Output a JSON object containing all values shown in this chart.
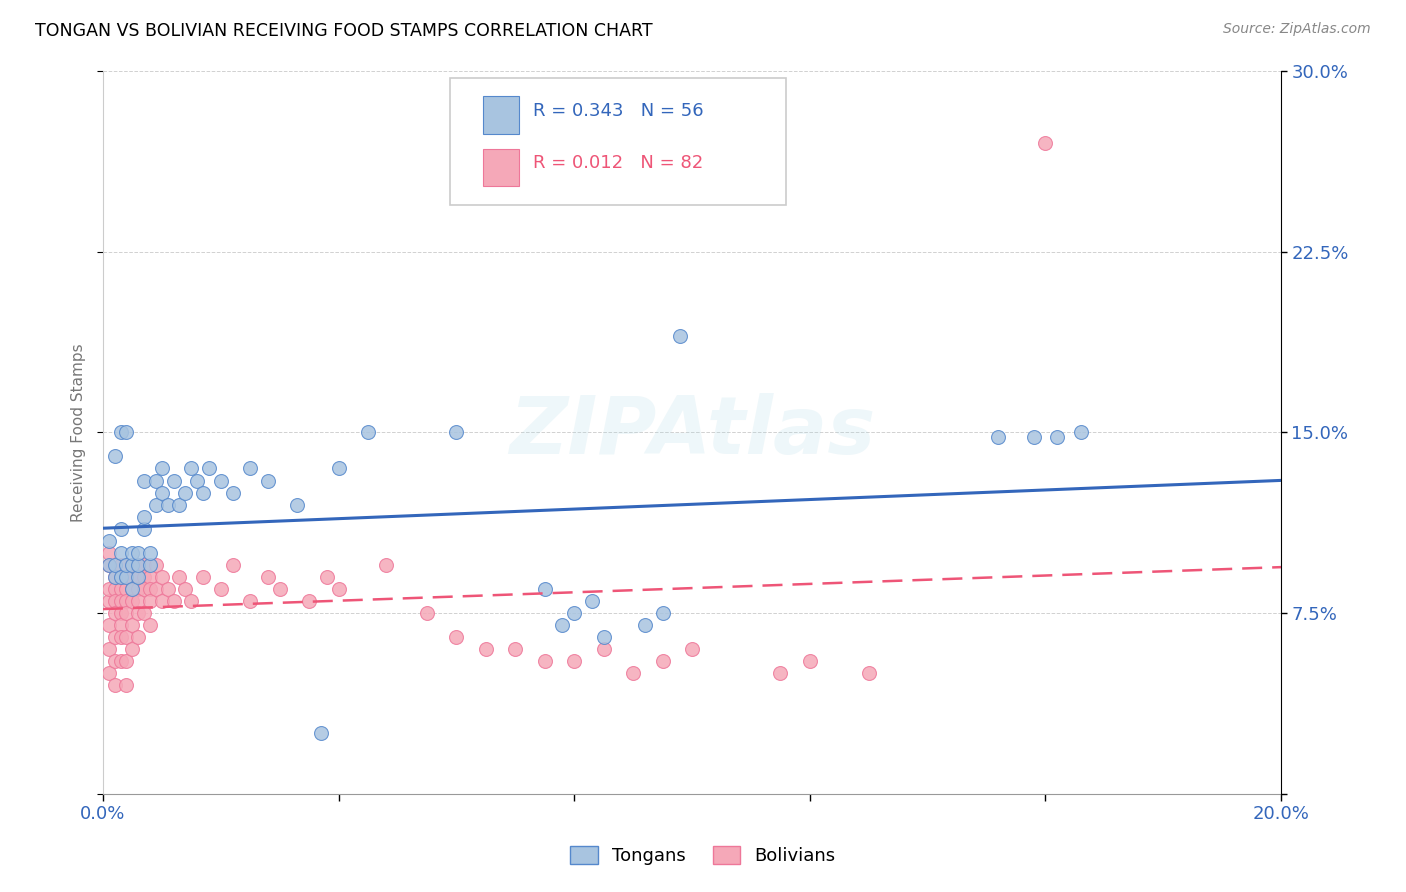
{
  "title": "TONGAN VS BOLIVIAN RECEIVING FOOD STAMPS CORRELATION CHART",
  "source": "Source: ZipAtlas.com",
  "ylabel": "Receiving Food Stamps",
  "xlim": [
    0.0,
    0.2
  ],
  "ylim": [
    0.0,
    0.3
  ],
  "watermark": "ZIPAtlas",
  "blue_fill": "#A8C4E0",
  "pink_fill": "#F5A8B8",
  "blue_edge": "#5588CC",
  "pink_edge": "#EE7799",
  "blue_line": "#3366BB",
  "pink_line": "#EE5577",
  "yticks": [
    0.0,
    0.075,
    0.15,
    0.225,
    0.3
  ],
  "ytick_labels": [
    "",
    "7.5%",
    "15.0%",
    "22.5%",
    "30.0%"
  ],
  "legend_R_tongan": "0.343",
  "legend_N_tongan": "56",
  "legend_R_bolivian": "0.012",
  "legend_N_bolivian": "82",
  "tongan_x": [
    0.001,
    0.001,
    0.002,
    0.002,
    0.002,
    0.003,
    0.003,
    0.003,
    0.003,
    0.004,
    0.004,
    0.004,
    0.005,
    0.005,
    0.005,
    0.006,
    0.006,
    0.006,
    0.007,
    0.007,
    0.007,
    0.008,
    0.008,
    0.009,
    0.009,
    0.01,
    0.01,
    0.011,
    0.012,
    0.013,
    0.014,
    0.015,
    0.016,
    0.017,
    0.018,
    0.02,
    0.022,
    0.025,
    0.028,
    0.033,
    0.04,
    0.045,
    0.06,
    0.075,
    0.078,
    0.08,
    0.083,
    0.085,
    0.092,
    0.095,
    0.098,
    0.152,
    0.158,
    0.162,
    0.166,
    0.037
  ],
  "tongan_y": [
    0.095,
    0.105,
    0.09,
    0.095,
    0.14,
    0.09,
    0.1,
    0.11,
    0.15,
    0.09,
    0.095,
    0.15,
    0.085,
    0.095,
    0.1,
    0.09,
    0.095,
    0.1,
    0.11,
    0.115,
    0.13,
    0.095,
    0.1,
    0.12,
    0.13,
    0.125,
    0.135,
    0.12,
    0.13,
    0.12,
    0.125,
    0.135,
    0.13,
    0.125,
    0.135,
    0.13,
    0.125,
    0.135,
    0.13,
    0.12,
    0.135,
    0.15,
    0.15,
    0.085,
    0.07,
    0.075,
    0.08,
    0.065,
    0.07,
    0.075,
    0.19,
    0.148,
    0.148,
    0.148,
    0.15,
    0.025
  ],
  "bolivian_x": [
    0.001,
    0.001,
    0.001,
    0.001,
    0.001,
    0.001,
    0.001,
    0.002,
    0.002,
    0.002,
    0.002,
    0.002,
    0.002,
    0.002,
    0.003,
    0.003,
    0.003,
    0.003,
    0.003,
    0.003,
    0.003,
    0.003,
    0.004,
    0.004,
    0.004,
    0.004,
    0.004,
    0.004,
    0.004,
    0.005,
    0.005,
    0.005,
    0.005,
    0.005,
    0.005,
    0.006,
    0.006,
    0.006,
    0.006,
    0.006,
    0.006,
    0.007,
    0.007,
    0.007,
    0.007,
    0.008,
    0.008,
    0.008,
    0.008,
    0.009,
    0.009,
    0.01,
    0.01,
    0.011,
    0.012,
    0.013,
    0.014,
    0.015,
    0.017,
    0.02,
    0.022,
    0.025,
    0.028,
    0.03,
    0.035,
    0.038,
    0.04,
    0.048,
    0.055,
    0.06,
    0.065,
    0.07,
    0.075,
    0.08,
    0.085,
    0.09,
    0.095,
    0.1,
    0.115,
    0.12,
    0.13,
    0.16
  ],
  "bolivian_y": [
    0.095,
    0.1,
    0.08,
    0.085,
    0.07,
    0.06,
    0.05,
    0.09,
    0.085,
    0.08,
    0.075,
    0.065,
    0.055,
    0.045,
    0.095,
    0.09,
    0.085,
    0.08,
    0.075,
    0.07,
    0.065,
    0.055,
    0.09,
    0.085,
    0.08,
    0.075,
    0.065,
    0.055,
    0.045,
    0.095,
    0.09,
    0.085,
    0.08,
    0.07,
    0.06,
    0.095,
    0.09,
    0.085,
    0.08,
    0.075,
    0.065,
    0.095,
    0.09,
    0.085,
    0.075,
    0.09,
    0.085,
    0.08,
    0.07,
    0.095,
    0.085,
    0.09,
    0.08,
    0.085,
    0.08,
    0.09,
    0.085,
    0.08,
    0.09,
    0.085,
    0.095,
    0.08,
    0.09,
    0.085,
    0.08,
    0.09,
    0.085,
    0.095,
    0.075,
    0.065,
    0.06,
    0.06,
    0.055,
    0.055,
    0.06,
    0.05,
    0.055,
    0.06,
    0.05,
    0.055,
    0.05,
    0.27
  ]
}
